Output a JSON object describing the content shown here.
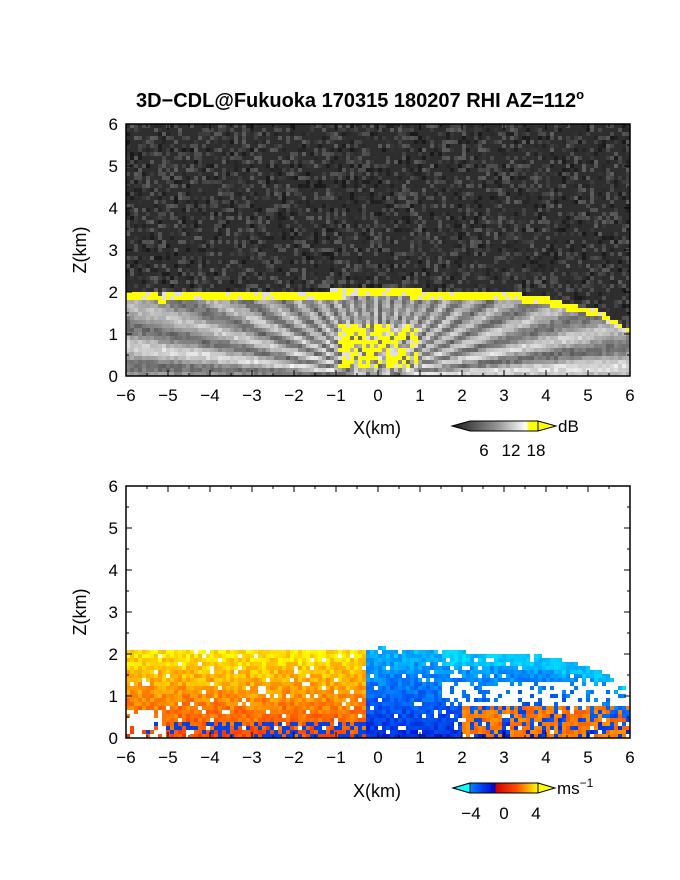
{
  "title_parts": {
    "main": "3D−CDL@Fukuoka 170315 180207 RHI AZ=112",
    "sup": "o"
  },
  "chart_data": [
    {
      "type": "heatmap",
      "quantity": "signal-to-noise ratio",
      "xlabel": "X(km)",
      "ylabel": "Z(km)",
      "xlim": [
        -6,
        6
      ],
      "ylim": [
        0,
        6
      ],
      "xticks": [
        "−6",
        "−5",
        "−4",
        "−3",
        "−2",
        "−1",
        "0",
        "1",
        "2",
        "3",
        "4",
        "5",
        "6"
      ],
      "yticks": [
        "0",
        "1",
        "2",
        "3",
        "4",
        "5",
        "6"
      ],
      "colorbar": {
        "unit": "dB",
        "ticks": [
          "6",
          "12",
          "18"
        ],
        "tick_values": [
          6,
          12,
          18
        ],
        "range": [
          0,
          20
        ],
        "colors": [
          "#1a1a1a",
          "#ffffff",
          "#ffff00"
        ]
      },
      "echo_top_km": [
        [
          -6.0,
          2.05
        ],
        [
          -5.2,
          1.95
        ],
        [
          -4.0,
          2.0
        ],
        [
          -1.0,
          2.05
        ],
        [
          0.0,
          2.1
        ],
        [
          1.0,
          2.05
        ],
        [
          3.0,
          2.0
        ],
        [
          3.9,
          1.9
        ],
        [
          4.6,
          1.7
        ],
        [
          5.2,
          1.6
        ],
        [
          6.0,
          1.1
        ]
      ],
      "grid": false
    },
    {
      "type": "heatmap",
      "quantity": "radial velocity",
      "xlabel": "X(km)",
      "ylabel": "Z(km)",
      "xlim": [
        -6,
        6
      ],
      "ylim": [
        0,
        6
      ],
      "xticks": [
        "−6",
        "−5",
        "−4",
        "−3",
        "−2",
        "−1",
        "0",
        "1",
        "2",
        "3",
        "4",
        "5",
        "6"
      ],
      "yticks": [
        "0",
        "1",
        "2",
        "3",
        "4",
        "5",
        "6"
      ],
      "colorbar": {
        "unit_main": "ms",
        "unit_sup": "−1",
        "ticks": [
          "−4",
          "0",
          "4"
        ],
        "tick_values": [
          -4,
          0,
          4
        ],
        "range": [
          -5,
          5
        ],
        "colors": [
          "#00ffff",
          "#0000ff",
          "#ff0000",
          "#ffff00"
        ]
      },
      "velocity_sign": {
        "x_lt_-0.3_km": "positive (red/orange/yellow)",
        "x_gt_-0.3_km": "negative (blue/cyan)"
      },
      "echo_top_km": [
        [
          -6.0,
          2.1
        ],
        [
          -4.0,
          2.05
        ],
        [
          -0.5,
          2.05
        ],
        [
          0.0,
          2.15
        ],
        [
          2.0,
          2.05
        ],
        [
          4.0,
          1.95
        ],
        [
          4.8,
          1.75
        ],
        [
          5.4,
          1.55
        ],
        [
          6.0,
          1.1
        ]
      ],
      "grid": false
    }
  ]
}
